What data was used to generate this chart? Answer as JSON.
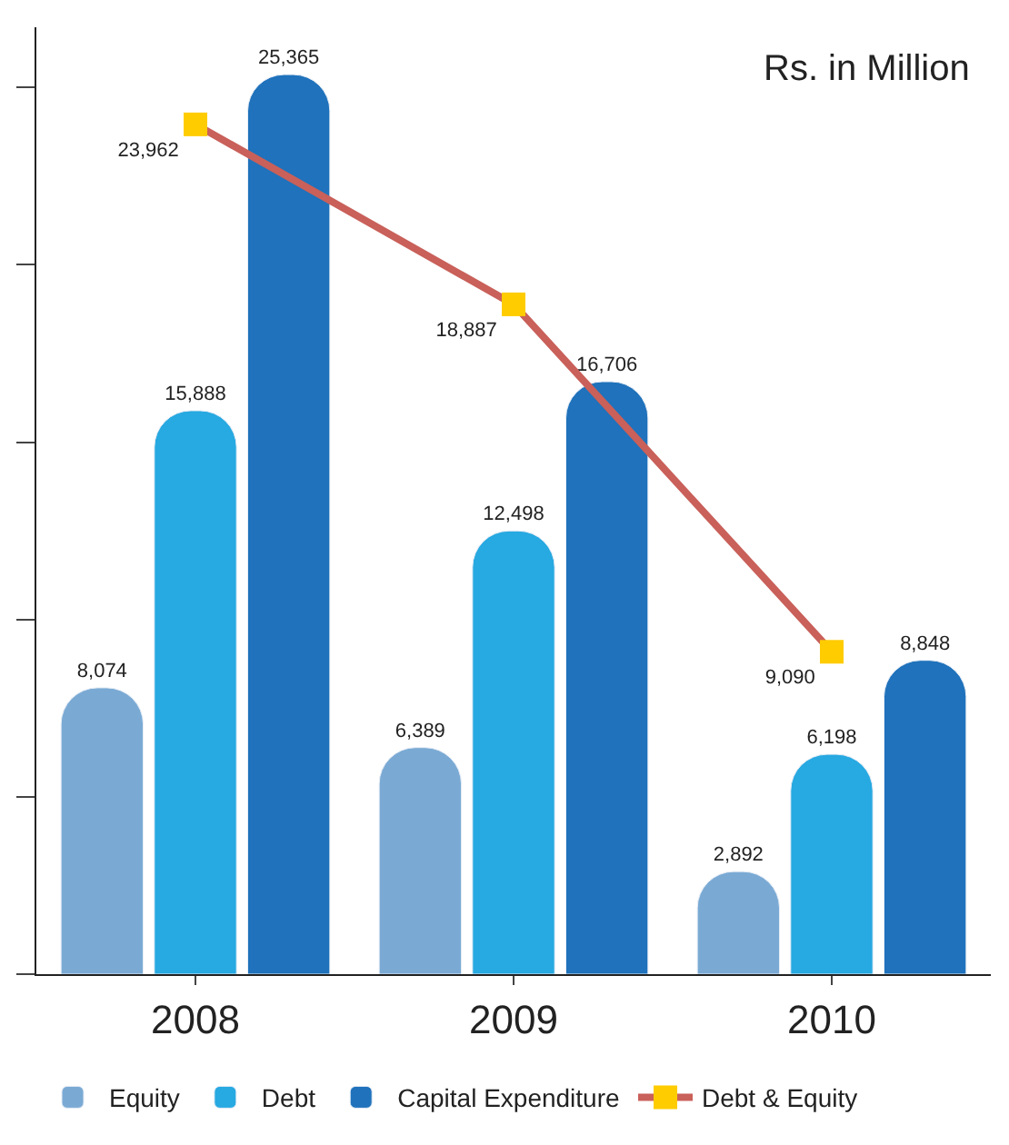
{
  "chart_data": {
    "type": "bar",
    "categories": [
      "2008",
      "2009",
      "2010"
    ],
    "series": [
      {
        "name": "Equity",
        "color": "#7aaad4",
        "values": [
          8074,
          6389,
          2892
        ],
        "value_labels": [
          "8,074",
          "6,389",
          "2,892"
        ]
      },
      {
        "name": "Debt",
        "color": "#27a9e1",
        "values": [
          15888,
          12498,
          6198
        ],
        "value_labels": [
          "15,888",
          "12,498",
          "6,198"
        ]
      },
      {
        "name": "Capital Expenditure",
        "color": "#1f72bb",
        "values": [
          25365,
          16706,
          8848
        ],
        "value_labels": [
          "25,365",
          "16,706",
          "8,848"
        ]
      },
      {
        "name": "Debt & Equity",
        "type": "line",
        "color": "#c9605a",
        "colors": [
          "#ffcc00",
          "#ffcc00",
          "#ffcc00"
        ],
        "marker": "square",
        "values": [
          23962,
          18887,
          9090
        ],
        "value_labels": [
          "23,962",
          "18,887",
          "9,090"
        ]
      }
    ],
    "tick_labels": "x",
    "legend": "bottom",
    "annotations": [
      "Rs. in Million"
    ]
  }
}
